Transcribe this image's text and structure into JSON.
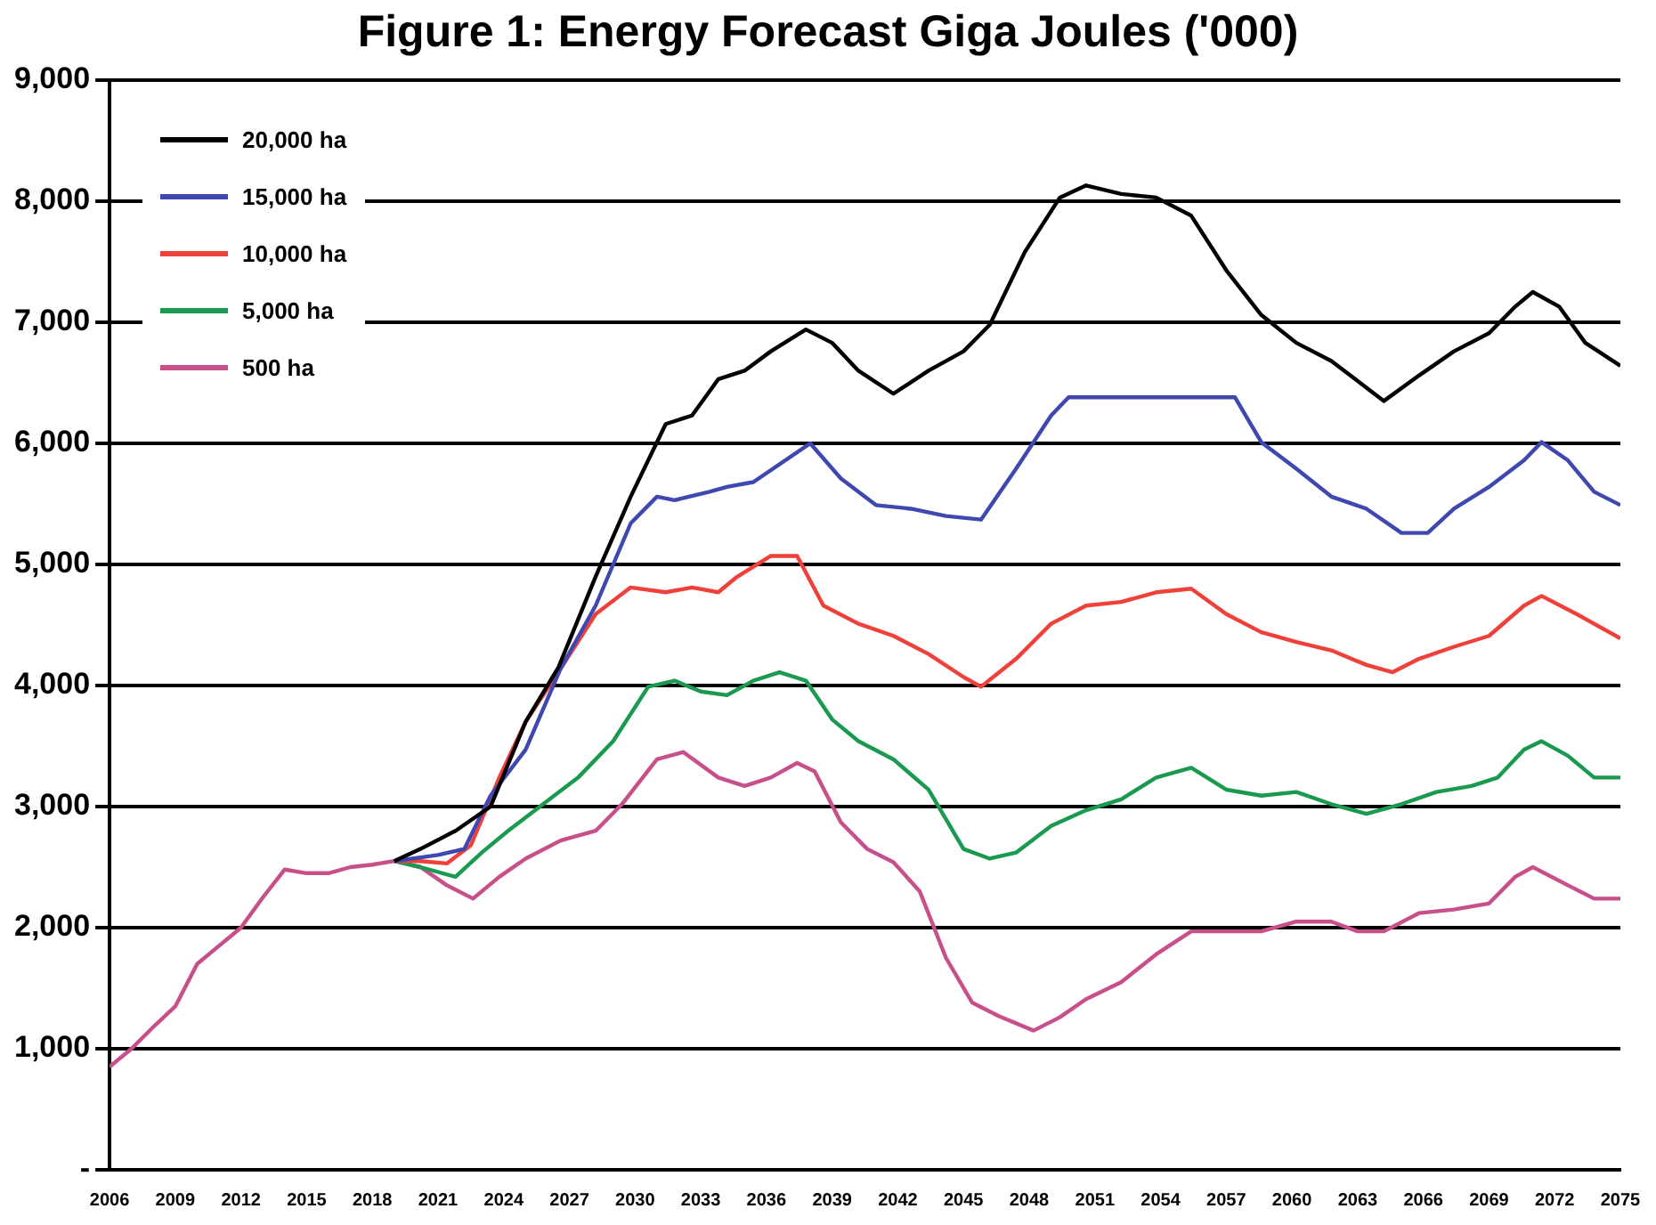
{
  "chart_data": {
    "type": "line",
    "title": "Figure 1: Energy Forecast Giga Joules ('000)",
    "xlim": [
      2006,
      2075
    ],
    "xticks": [
      2006,
      2009,
      2012,
      2015,
      2018,
      2021,
      2024,
      2027,
      2030,
      2033,
      2036,
      2039,
      2042,
      2045,
      2048,
      2051,
      2054,
      2057,
      2060,
      2063,
      2066,
      2069,
      2072,
      2075
    ],
    "ylim": [
      0,
      9000
    ],
    "yticks": [
      {
        "value": 0,
        "label": "-"
      },
      {
        "value": 1000,
        "label": "1,000"
      },
      {
        "value": 2000,
        "label": "2,000"
      },
      {
        "value": 3000,
        "label": "3,000"
      },
      {
        "value": 4000,
        "label": "4,000"
      },
      {
        "value": 5000,
        "label": "5,000"
      },
      {
        "value": 6000,
        "label": "6,000"
      },
      {
        "value": 7000,
        "label": "7,000"
      },
      {
        "value": 8000,
        "label": "8,000"
      },
      {
        "value": 9000,
        "label": "9,000"
      }
    ],
    "grid": "y",
    "legend": "top left",
    "marker": "none",
    "line_style": "solid",
    "series": [
      {
        "name": "20,000 ha",
        "color": "#000000",
        "x": [
          2019,
          2020.2,
          2021.8,
          2023.4,
          2025.0,
          2026.5,
          2028.2,
          2029.8,
          2031.4,
          2032.6,
          2033.8,
          2035.0,
          2036.2,
          2037.8,
          2039.0,
          2040.2,
          2041.8,
          2043.4,
          2045.0,
          2046.2,
          2047.8,
          2049.4,
          2050.6,
          2052.2,
          2053.8,
          2055.4,
          2057.0,
          2058.6,
          2060.2,
          2061.8,
          2063.4,
          2064.2,
          2065.8,
          2067.4,
          2069.0,
          2070.2,
          2071.0,
          2072.2,
          2073.4,
          2075.0
        ],
        "values": [
          2550,
          2650,
          2800,
          3000,
          3700,
          4150,
          4900,
          5560,
          6160,
          6230,
          6530,
          6600,
          6760,
          6940,
          6830,
          6600,
          6410,
          6600,
          6760,
          6980,
          7580,
          8030,
          8130,
          8060,
          8030,
          7880,
          7430,
          7060,
          6830,
          6680,
          6460,
          6350,
          6560,
          6760,
          6910,
          7130,
          7250,
          7130,
          6830,
          6640
        ]
      },
      {
        "name": "15,000 ha",
        "color": "#3f48b0",
        "x": [
          2019,
          2020.2,
          2021.0,
          2022.2,
          2023.4,
          2025.0,
          2026.6,
          2028.2,
          2029.8,
          2031.0,
          2031.8,
          2033.4,
          2034.2,
          2035.4,
          2038.0,
          2039.4,
          2041.0,
          2042.6,
          2044.2,
          2045.8,
          2047.4,
          2049.0,
          2049.8,
          2057.4,
          2058.6,
          2060.2,
          2061.8,
          2063.4,
          2065.0,
          2066.2,
          2067.4,
          2069.0,
          2070.6,
          2071.4,
          2072.6,
          2073.8,
          2075.0
        ],
        "values": [
          2550,
          2580,
          2600,
          2650,
          3090,
          3470,
          4140,
          4660,
          5340,
          5560,
          5530,
          5600,
          5640,
          5680,
          6000,
          5710,
          5490,
          5460,
          5400,
          5370,
          5790,
          6230,
          6380,
          6380,
          6010,
          5790,
          5560,
          5460,
          5260,
          5260,
          5460,
          5640,
          5860,
          6010,
          5860,
          5600,
          5490
        ]
      },
      {
        "name": "10,000 ha",
        "color": "#f0403a",
        "x": [
          2019,
          2020.2,
          2021.4,
          2022.5,
          2023.8,
          2025.0,
          2026.6,
          2028.2,
          2029.8,
          2031.4,
          2032.6,
          2033.8,
          2034.6,
          2036.2,
          2037.4,
          2038.6,
          2040.2,
          2041.8,
          2043.4,
          2045.0,
          2045.8,
          2047.4,
          2049.0,
          2050.6,
          2052.2,
          2053.8,
          2055.4,
          2057.0,
          2058.6,
          2060.2,
          2061.8,
          2063.4,
          2064.6,
          2065.8,
          2067.4,
          2069.0,
          2070.6,
          2071.4,
          2073.0,
          2075.0
        ],
        "values": [
          2550,
          2550,
          2530,
          2680,
          3240,
          3700,
          4140,
          4590,
          4810,
          4770,
          4810,
          4770,
          4890,
          5070,
          5070,
          4660,
          4510,
          4410,
          4260,
          4070,
          3990,
          4220,
          4510,
          4660,
          4690,
          4770,
          4800,
          4590,
          4440,
          4360,
          4290,
          4170,
          4110,
          4220,
          4320,
          4410,
          4660,
          4740,
          4590,
          4390
        ]
      },
      {
        "name": "5,000 ha",
        "color": "#1a9a50",
        "x": [
          2019,
          2020.2,
          2021.8,
          2023.0,
          2024.2,
          2025.8,
          2027.4,
          2029.0,
          2030.6,
          2031.8,
          2033.0,
          2034.2,
          2035.4,
          2036.6,
          2037.8,
          2039.0,
          2040.2,
          2041.8,
          2043.4,
          2045.0,
          2046.2,
          2047.4,
          2049.0,
          2050.6,
          2052.2,
          2053.8,
          2055.4,
          2057.0,
          2058.6,
          2060.2,
          2061.8,
          2063.4,
          2065.0,
          2066.6,
          2068.2,
          2069.4,
          2070.6,
          2071.4,
          2072.6,
          2073.8,
          2075.0
        ],
        "values": [
          2550,
          2500,
          2420,
          2620,
          2800,
          3020,
          3240,
          3540,
          3990,
          4040,
          3950,
          3920,
          4040,
          4110,
          4040,
          3720,
          3540,
          3390,
          3140,
          2650,
          2570,
          2620,
          2840,
          2970,
          3060,
          3240,
          3320,
          3140,
          3090,
          3120,
          3020,
          2940,
          3020,
          3120,
          3170,
          3240,
          3470,
          3540,
          3420,
          3240,
          3240
        ]
      },
      {
        "name": "500 ha",
        "color": "#c8508a",
        "x": [
          2006,
          2007,
          2008,
          2009,
          2010,
          2011,
          2012,
          2013,
          2014,
          2015,
          2016,
          2017,
          2018,
          2019,
          2020.2,
          2021.4,
          2022.6,
          2023.8,
          2025.0,
          2026.6,
          2028.2,
          2029.4,
          2031.0,
          2032.2,
          2033.8,
          2035.0,
          2036.2,
          2037.4,
          2038.2,
          2039.4,
          2040.6,
          2041.8,
          2043.0,
          2044.2,
          2045.4,
          2046.6,
          2048.2,
          2049.4,
          2050.6,
          2052.2,
          2053.8,
          2055.4,
          2057.0,
          2058.6,
          2060.2,
          2061.8,
          2063.0,
          2064.2,
          2065.8,
          2067.4,
          2069.0,
          2070.2,
          2071.0,
          2072.6,
          2073.8,
          2075.0
        ],
        "values": [
          850,
          1000,
          1180,
          1350,
          1700,
          1850,
          2000,
          2250,
          2480,
          2450,
          2450,
          2500,
          2520,
          2550,
          2500,
          2350,
          2240,
          2420,
          2570,
          2720,
          2800,
          3020,
          3390,
          3450,
          3240,
          3170,
          3240,
          3360,
          3290,
          2870,
          2650,
          2540,
          2300,
          1750,
          1380,
          1270,
          1150,
          1260,
          1410,
          1550,
          1780,
          1970,
          1970,
          1970,
          2050,
          2050,
          1970,
          1970,
          2120,
          2150,
          2200,
          2420,
          2500,
          2350,
          2240,
          2240
        ]
      }
    ]
  }
}
